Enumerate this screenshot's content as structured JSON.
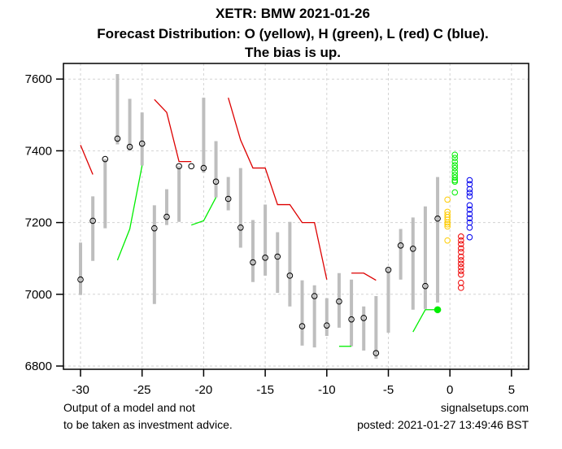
{
  "chart_data": {
    "type": "line",
    "title": "XETR: BMW 2021-01-26",
    "subtitle_lines": [
      "Forecast Distribution: O (yellow), H (green), L (red) C (blue).",
      "The bias is up."
    ],
    "xlabel": "",
    "ylabel": "",
    "xlim": [
      -31.5,
      6.5
    ],
    "ylim": [
      6790,
      7660
    ],
    "x_ticks": [
      -30,
      -25,
      -20,
      -15,
      -10,
      -5,
      0,
      5
    ],
    "x_tick_labels": [
      "-30",
      "-25",
      "-20",
      "-15",
      "-10",
      "-5",
      "0",
      "5"
    ],
    "y_ticks": [
      6800,
      7000,
      7200,
      7400,
      7600
    ],
    "y_tick_labels": [
      "6800",
      "7000",
      "7200",
      "7400",
      "7600"
    ],
    "grid": true,
    "colors": {
      "range_bar": "#bebebe",
      "close_marker": "#000000",
      "high_forecast": "#00ee00",
      "low_forecast": "#dd0000",
      "open_dist": "#ffcc00",
      "high_dist": "#00ee00",
      "low_dist": "#ee0000",
      "close_dist": "#0000ee",
      "grid": "#d3d3d3"
    },
    "price_bars": [
      {
        "x": -30,
        "high": 7144,
        "low": 6998,
        "close": 7041
      },
      {
        "x": -29,
        "high": 7273,
        "low": 7093,
        "close": 7205
      },
      {
        "x": -28,
        "high": 7377,
        "low": 7184,
        "close": 7377
      },
      {
        "x": -27,
        "high": 7614,
        "low": 7418,
        "close": 7434
      },
      {
        "x": -26,
        "high": 7545,
        "low": 7400,
        "close": 7411
      },
      {
        "x": -25,
        "high": 7507,
        "low": 7359,
        "close": 7420
      },
      {
        "x": -24,
        "high": 7248,
        "low": 6973,
        "close": 7184
      },
      {
        "x": -23,
        "high": 7293,
        "low": 7193,
        "close": 7216
      },
      {
        "x": -22,
        "high": 7357,
        "low": 7202,
        "close": 7357
      },
      {
        "x": -21,
        "high": 7357,
        "low": 7357,
        "close": 7357
      },
      {
        "x": -20,
        "high": 7548,
        "low": 7339,
        "close": 7352
      },
      {
        "x": -19,
        "high": 7427,
        "low": 7270,
        "close": 7314
      },
      {
        "x": -18,
        "high": 7327,
        "low": 7234,
        "close": 7266
      },
      {
        "x": -17,
        "high": 7352,
        "low": 7130,
        "close": 7186
      },
      {
        "x": -16,
        "high": 7207,
        "low": 7034,
        "close": 7089
      },
      {
        "x": -15,
        "high": 7250,
        "low": 7052,
        "close": 7102
      },
      {
        "x": -14,
        "high": 7173,
        "low": 7004,
        "close": 7105
      },
      {
        "x": -13,
        "high": 7202,
        "low": 6966,
        "close": 7052
      },
      {
        "x": -12,
        "high": 7039,
        "low": 6857,
        "close": 6911
      },
      {
        "x": -11,
        "high": 7025,
        "low": 6852,
        "close": 6995
      },
      {
        "x": -10,
        "high": 6989,
        "low": 6884,
        "close": 6913
      },
      {
        "x": -9,
        "high": 7059,
        "low": 6907,
        "close": 6980
      },
      {
        "x": -8,
        "high": 7041,
        "low": 6855,
        "close": 6930
      },
      {
        "x": -7,
        "high": 6966,
        "low": 6843,
        "close": 6934
      },
      {
        "x": -6,
        "high": 6995,
        "low": 6820,
        "close": 6836
      },
      {
        "x": -5,
        "high": 7073,
        "low": 6893,
        "close": 7068
      },
      {
        "x": -4,
        "high": 7182,
        "low": 7041,
        "close": 7136
      },
      {
        "x": -3,
        "high": 7214,
        "low": 6957,
        "close": 7127
      },
      {
        "x": -2,
        "high": 7245,
        "low": 6959,
        "close": 7023
      },
      {
        "x": -1,
        "high": 7327,
        "low": 6977,
        "close": 7211
      }
    ],
    "series": [
      {
        "name": "low-forecast-segment-1",
        "color_key": "low_forecast",
        "points": [
          [
            -30,
            7416
          ],
          [
            -29,
            7334
          ]
        ]
      },
      {
        "name": "low-forecast-segment-2",
        "color_key": "low_forecast",
        "points": [
          [
            -24,
            7543
          ],
          [
            -23,
            7507
          ],
          [
            -22,
            7370
          ],
          [
            -21,
            7370
          ]
        ]
      },
      {
        "name": "low-forecast-segment-3",
        "color_key": "low_forecast",
        "points": [
          [
            -18,
            7548
          ],
          [
            -17,
            7430
          ],
          [
            -16,
            7352
          ],
          [
            -15,
            7352
          ],
          [
            -14,
            7250
          ],
          [
            -13,
            7250
          ],
          [
            -12,
            7200
          ],
          [
            -11,
            7200
          ],
          [
            -10,
            7041
          ]
        ]
      },
      {
        "name": "low-forecast-segment-4",
        "color_key": "low_forecast",
        "points": [
          [
            -8,
            7059
          ],
          [
            -7,
            7059
          ],
          [
            -6,
            7039
          ]
        ]
      },
      {
        "name": "high-forecast-segment-1",
        "color_key": "high_forecast",
        "points": [
          [
            -27,
            7095
          ],
          [
            -26,
            7182
          ],
          [
            -25,
            7359
          ]
        ]
      },
      {
        "name": "high-forecast-segment-2",
        "color_key": "high_forecast",
        "points": [
          [
            -21,
            7193
          ],
          [
            -20,
            7205
          ],
          [
            -19,
            7270
          ]
        ]
      },
      {
        "name": "high-forecast-segment-3",
        "color_key": "high_forecast",
        "points": [
          [
            -9,
            6855
          ],
          [
            -8,
            6855
          ]
        ]
      },
      {
        "name": "high-forecast-segment-4",
        "color_key": "high_forecast",
        "points": [
          [
            -3,
            6895
          ],
          [
            -2,
            6957
          ],
          [
            -1,
            6957
          ]
        ]
      }
    ],
    "highlight_point": {
      "x": -1,
      "y": 6957,
      "color_key": "high_forecast"
    },
    "distributions": [
      {
        "name": "open",
        "color_key": "open_dist",
        "x": -0.2,
        "values": [
          7264,
          7230,
          7222,
          7215,
          7208,
          7200,
          7195,
          7189,
          7150
        ]
      },
      {
        "name": "high",
        "color_key": "high_dist",
        "x": 0.4,
        "values": [
          7389,
          7380,
          7370,
          7360,
          7352,
          7342,
          7333,
          7325,
          7318,
          7314,
          7284
        ]
      },
      {
        "name": "low",
        "color_key": "low_dist",
        "x": 0.9,
        "values": [
          7161,
          7150,
          7140,
          7128,
          7118,
          7105,
          7095,
          7085,
          7075,
          7065,
          7055,
          7032,
          7018
        ]
      },
      {
        "name": "close",
        "color_key": "close_dist",
        "x": 1.6,
        "values": [
          7318,
          7307,
          7293,
          7283,
          7273,
          7248,
          7236,
          7224,
          7212,
          7200,
          7186,
          7159
        ]
      }
    ]
  },
  "footer": {
    "disclaimer_line1": "Output of a model and not",
    "disclaimer_line2": "to be taken as investment advice.",
    "site": "signalsetups.com",
    "posted": "posted: 2021-01-27 13:49:46 BST"
  }
}
